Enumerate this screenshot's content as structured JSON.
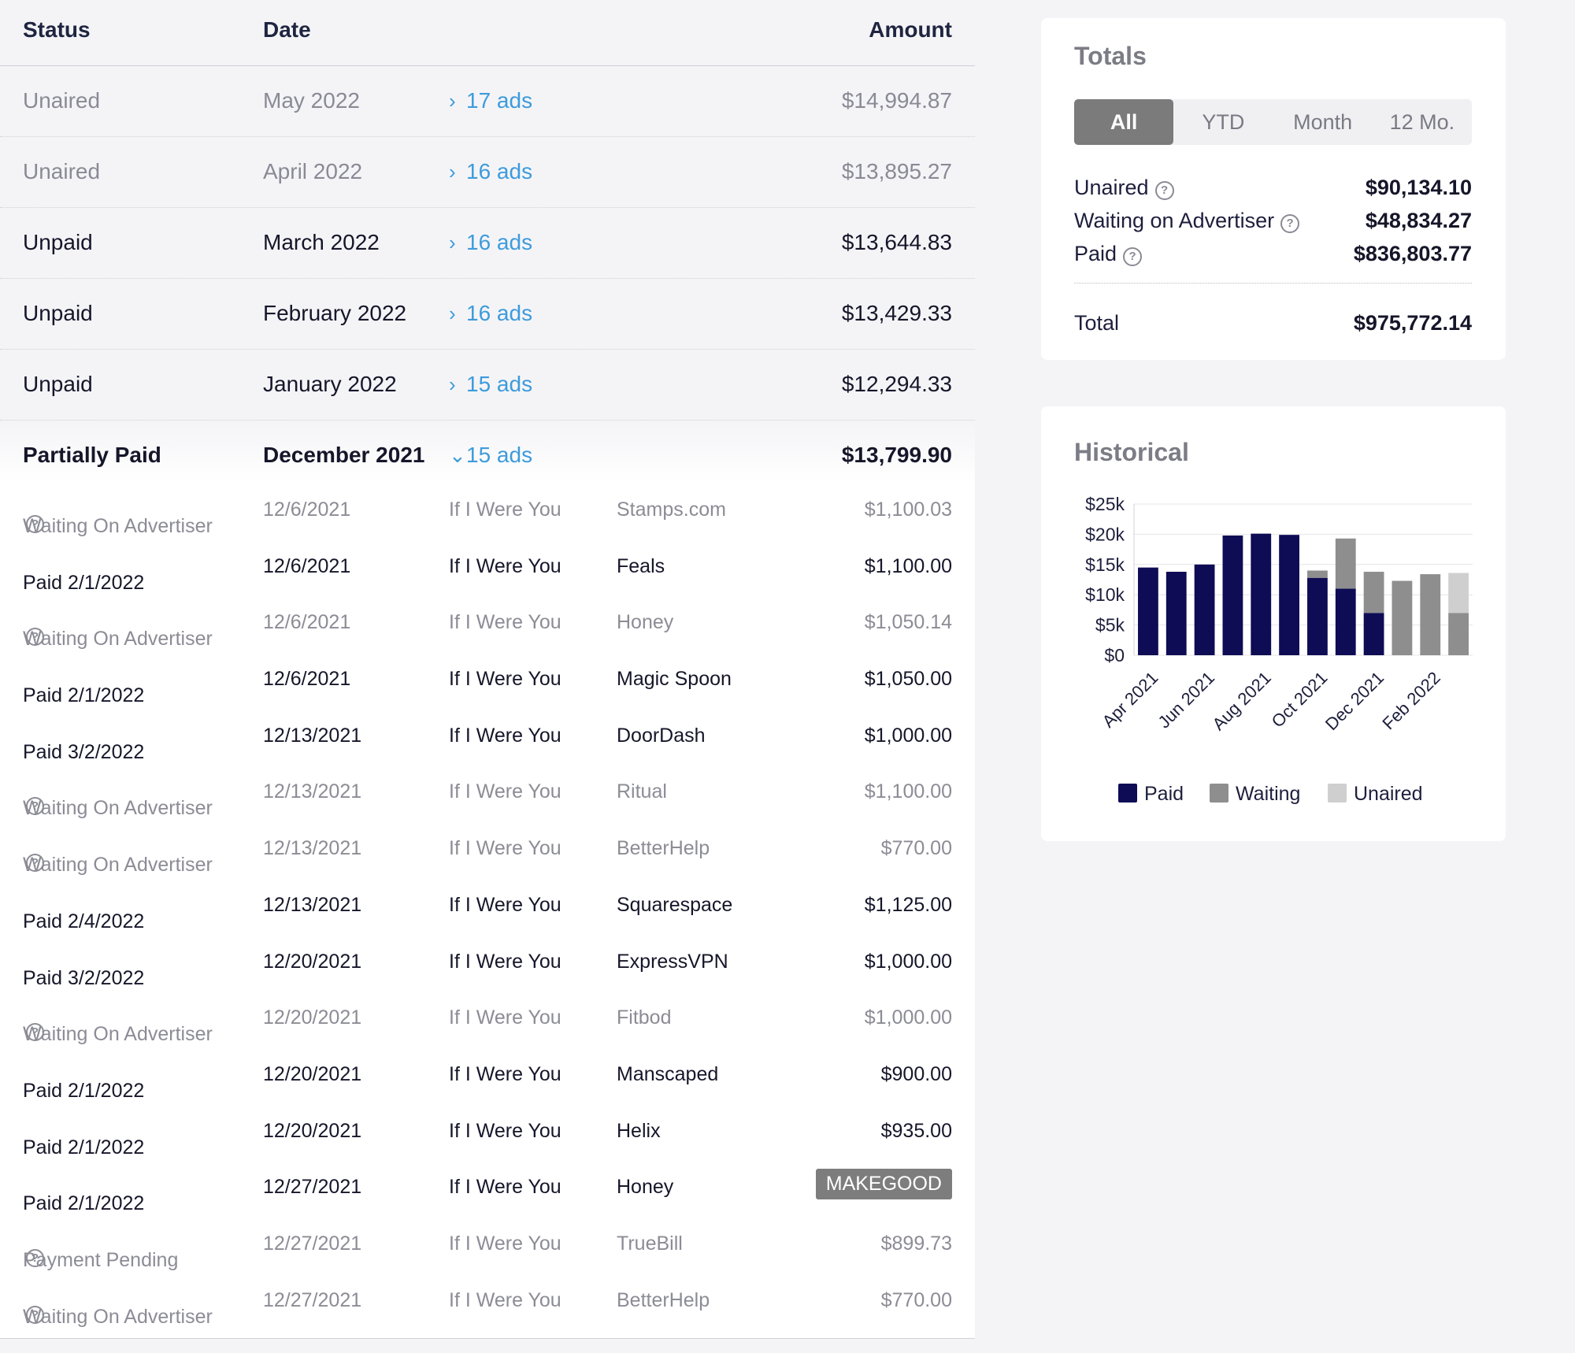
{
  "table": {
    "headers": {
      "status": "Status",
      "date": "Date",
      "amount": "Amount"
    },
    "months": [
      {
        "status": "Unaired",
        "date": "May 2022",
        "ads": "17 ads",
        "amount": "$14,994.87",
        "dim": true
      },
      {
        "status": "Unaired",
        "date": "April 2022",
        "ads": "16 ads",
        "amount": "$13,895.27",
        "dim": true
      },
      {
        "status": "Unpaid",
        "date": "March 2022",
        "ads": "16 ads",
        "amount": "$13,644.83",
        "dim": false
      },
      {
        "status": "Unpaid",
        "date": "February 2022",
        "ads": "16 ads",
        "amount": "$13,429.33",
        "dim": false
      },
      {
        "status": "Unpaid",
        "date": "January 2022",
        "ads": "15 ads",
        "amount": "$12,294.33",
        "dim": false
      }
    ],
    "expanded": {
      "status": "Partially Paid",
      "date": "December 2021",
      "ads": "15 ads",
      "amount": "$13,799.90"
    },
    "detail_rows": [
      {
        "status": "Waiting On Advertiser",
        "help": true,
        "date": "12/6/2021",
        "show": "If I Were You",
        "sponsor": "Stamps.com",
        "amount": "$1,100.03",
        "dim": true
      },
      {
        "status": "Paid 2/1/2022",
        "help": false,
        "date": "12/6/2021",
        "show": "If I Were You",
        "sponsor": "Feals",
        "amount": "$1,100.00",
        "dim": false
      },
      {
        "status": "Waiting On Advertiser",
        "help": true,
        "date": "12/6/2021",
        "show": "If I Were You",
        "sponsor": "Honey",
        "amount": "$1,050.14",
        "dim": true
      },
      {
        "status": "Paid 2/1/2022",
        "help": false,
        "date": "12/6/2021",
        "show": "If I Were You",
        "sponsor": "Magic Spoon",
        "amount": "$1,050.00",
        "dim": false
      },
      {
        "status": "Paid 3/2/2022",
        "help": false,
        "date": "12/13/2021",
        "show": "If I Were You",
        "sponsor": "DoorDash",
        "amount": "$1,000.00",
        "dim": false
      },
      {
        "status": "Waiting On Advertiser",
        "help": true,
        "date": "12/13/2021",
        "show": "If I Were You",
        "sponsor": "Ritual",
        "amount": "$1,100.00",
        "dim": true
      },
      {
        "status": "Waiting On Advertiser",
        "help": true,
        "date": "12/13/2021",
        "show": "If I Were You",
        "sponsor": "BetterHelp",
        "amount": "$770.00",
        "dim": true
      },
      {
        "status": "Paid 2/4/2022",
        "help": false,
        "date": "12/13/2021",
        "show": "If I Were You",
        "sponsor": "Squarespace",
        "amount": "$1,125.00",
        "dim": false
      },
      {
        "status": "Paid 3/2/2022",
        "help": false,
        "date": "12/20/2021",
        "show": "If I Were You",
        "sponsor": "ExpressVPN",
        "amount": "$1,000.00",
        "dim": false
      },
      {
        "status": "Waiting On Advertiser",
        "help": true,
        "date": "12/20/2021",
        "show": "If I Were You",
        "sponsor": "Fitbod",
        "amount": "$1,000.00",
        "dim": true
      },
      {
        "status": "Paid 2/1/2022",
        "help": false,
        "date": "12/20/2021",
        "show": "If I Were You",
        "sponsor": "Manscaped",
        "amount": "$900.00",
        "dim": false
      },
      {
        "status": "Paid 2/1/2022",
        "help": false,
        "date": "12/20/2021",
        "show": "If I Were You",
        "sponsor": "Helix",
        "amount": "$935.00",
        "dim": false
      },
      {
        "status": "Paid 2/1/2022",
        "help": false,
        "date": "12/27/2021",
        "show": "If I Were You",
        "sponsor": "Honey",
        "amount": "MAKEGOOD",
        "badge": true,
        "dim": false
      },
      {
        "status": "Payment Pending",
        "help": true,
        "date": "12/27/2021",
        "show": "If I Were You",
        "sponsor": "TrueBill",
        "amount": "$899.73",
        "dim": true
      },
      {
        "status": "Waiting On Advertiser",
        "help": true,
        "date": "12/27/2021",
        "show": "If I Were You",
        "sponsor": "BetterHelp",
        "amount": "$770.00",
        "dim": true
      }
    ]
  },
  "totals": {
    "title": "Totals",
    "tabs": [
      "All",
      "YTD",
      "Month",
      "12 Mo."
    ],
    "active_tab": "All",
    "lines": [
      {
        "label": "Unaired",
        "help": true,
        "value": "$90,134.10"
      },
      {
        "label": "Waiting on Advertiser",
        "help": true,
        "value": "$48,834.27"
      },
      {
        "label": "Paid",
        "help": true,
        "value": "$836,803.77"
      }
    ],
    "total_label": "Total",
    "total_value": "$975,772.14"
  },
  "historical": {
    "title": "Historical",
    "legend": [
      "Paid",
      "Waiting",
      "Unaired"
    ]
  },
  "colors": {
    "paid": "#0e0c55",
    "waiting": "#8e8e8e",
    "unaired": "#cfcfcf",
    "link": "#3d9bdb",
    "active_tab": "#7b7b7b"
  },
  "chart_data": {
    "type": "bar",
    "stacked": true,
    "categories": [
      "Apr 2021",
      "May 2021",
      "Jun 2021",
      "Jul 2021",
      "Aug 2021",
      "Sep 2021",
      "Oct 2021",
      "Nov 2021",
      "Dec 2021",
      "Jan 2022",
      "Feb 2022",
      "Mar 2022"
    ],
    "tick_labels": [
      "Apr 2021",
      "Jun 2021",
      "Aug 2021",
      "Oct 2021",
      "Dec 2021",
      "Feb 2022"
    ],
    "y_ticks": [
      "$25k",
      "$20k",
      "$15k",
      "$10k",
      "$5k",
      "$0"
    ],
    "ylim": [
      0,
      25000
    ],
    "series": [
      {
        "name": "Paid",
        "values": [
          14500,
          13800,
          15000,
          19800,
          20100,
          19900,
          12800,
          11000,
          7000,
          0,
          0,
          0
        ]
      },
      {
        "name": "Waiting",
        "values": [
          0,
          0,
          0,
          0,
          0,
          0,
          1200,
          8300,
          6800,
          12300,
          13400,
          7000
        ]
      },
      {
        "name": "Unaired",
        "values": [
          0,
          0,
          0,
          0,
          0,
          0,
          0,
          0,
          0,
          0,
          0,
          6600
        ]
      }
    ],
    "grid": true,
    "legend_position": "bottom"
  }
}
